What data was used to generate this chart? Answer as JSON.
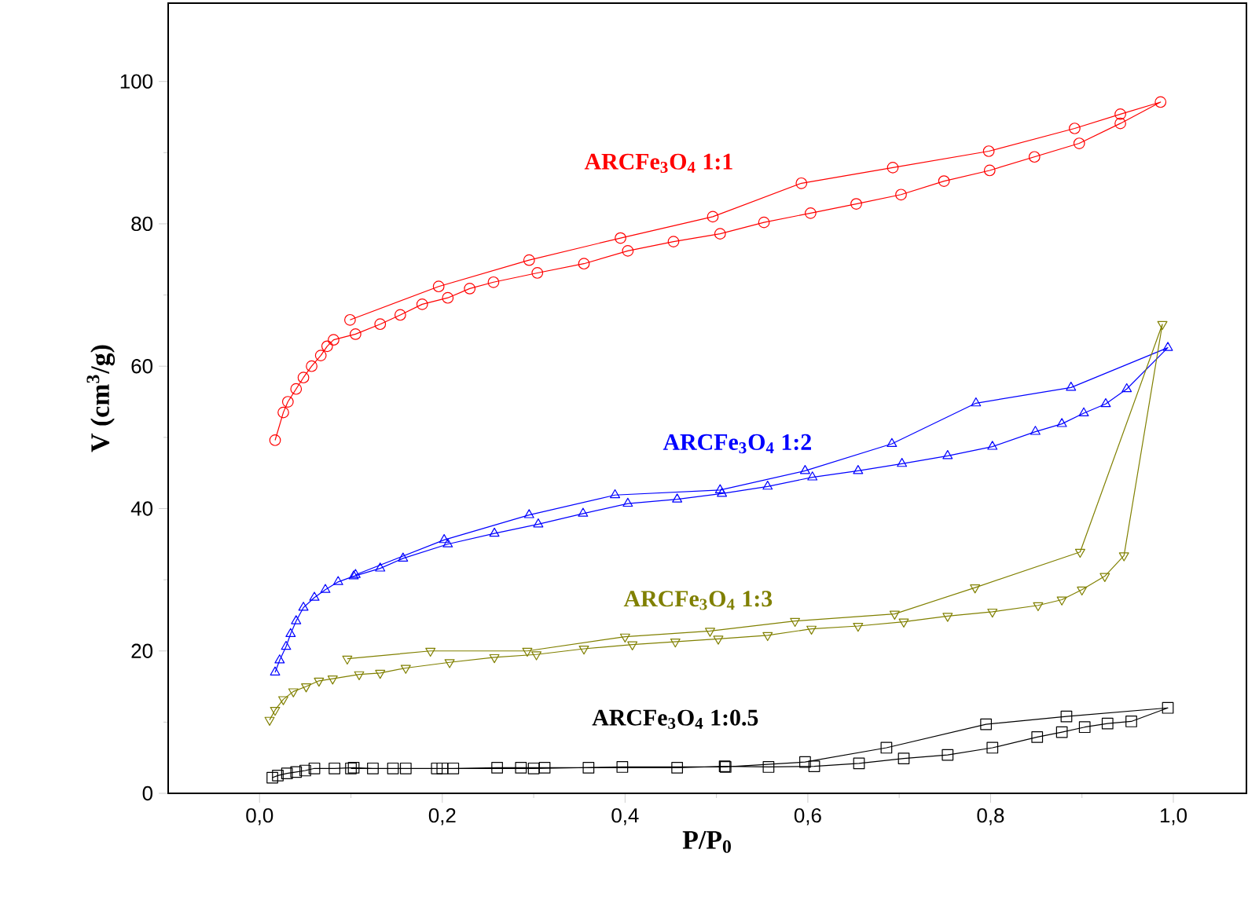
{
  "chart_data": {
    "type": "line",
    "xlabel": "P/P$_{0}$",
    "ylabel": "V (cm$^{3}$/g)",
    "xlim": [
      -0.1,
      1.08
    ],
    "ylim": [
      0,
      111
    ],
    "xticks": [
      {
        "value": 0,
        "label": "0,0"
      },
      {
        "value": 0.2,
        "label": "0,2"
      },
      {
        "value": 0.4,
        "label": "0,4"
      },
      {
        "value": 0.6,
        "label": "0,6"
      },
      {
        "value": 0.8,
        "label": "0,8"
      },
      {
        "value": 1,
        "label": "1,0"
      }
    ],
    "yticks": [
      0,
      20,
      40,
      60,
      80,
      100
    ],
    "series": [
      {
        "name": "ARCFe$_{3}$O$_{4}$ 1:1",
        "color": "#ff0000",
        "marker": "circle",
        "x": [
          0.017,
          0.026,
          0.031,
          0.04,
          0.048,
          0.057,
          0.067,
          0.074,
          0.081,
          0.105,
          0.132,
          0.154,
          0.178,
          0.206,
          0.23,
          0.256,
          0.304,
          0.355,
          0.403,
          0.453,
          0.504,
          0.552,
          0.603,
          0.653,
          0.702,
          0.749,
          0.799,
          0.848,
          0.897,
          0.942,
          0.986,
          0.942,
          0.892,
          0.798,
          0.693,
          0.593,
          0.496,
          0.395,
          0.295,
          0.196,
          0.099
        ],
        "values": [
          49.6,
          53.5,
          55,
          56.8,
          58.4,
          60,
          61.5,
          62.8,
          63.7,
          64.5,
          65.9,
          67.2,
          68.7,
          69.6,
          70.9,
          71.8,
          73.1,
          74.4,
          76.2,
          77.5,
          78.6,
          80.2,
          81.5,
          82.8,
          84.1,
          86.0,
          87.5,
          89.4,
          91.3,
          94.1,
          97.1,
          95.4,
          93.4,
          90.2,
          87.9,
          85.7,
          81.0,
          78.0,
          74.9,
          71.2,
          66.5
        ]
      },
      {
        "name": "ARCFe$_{3}$O$_{4}$ 1:2",
        "color": "#0000ff",
        "marker": "triangle",
        "x": [
          0.017,
          0.022,
          0.029,
          0.034,
          0.04,
          0.048,
          0.06,
          0.072,
          0.086,
          0.103,
          0.132,
          0.157,
          0.206,
          0.257,
          0.305,
          0.354,
          0.403,
          0.457,
          0.506,
          0.556,
          0.605,
          0.655,
          0.703,
          0.753,
          0.802,
          0.849,
          0.878,
          0.902,
          0.926,
          0.949,
          0.994,
          0.888,
          0.784,
          0.692,
          0.597,
          0.504,
          0.389,
          0.295,
          0.202,
          0.105
        ],
        "values": [
          17.0,
          18.7,
          20.6,
          22.4,
          24.2,
          26.1,
          27.5,
          28.6,
          29.7,
          30.5,
          31.6,
          33.0,
          35.0,
          36.5,
          37.8,
          39.3,
          40.7,
          41.3,
          42.1,
          43.1,
          44.4,
          45.3,
          46.3,
          47.4,
          48.7,
          50.8,
          51.9,
          53.4,
          54.7,
          56.8,
          62.6,
          57.0,
          54.8,
          49.1,
          45.3,
          42.6,
          41.9,
          39.1,
          35.6,
          30.7
        ]
      },
      {
        "name": "ARCFe$_{3}$O$_{4}$ 1:3",
        "color": "#808000",
        "marker": "triangle_down",
        "x": [
          0.011,
          0.017,
          0.026,
          0.037,
          0.051,
          0.065,
          0.08,
          0.109,
          0.132,
          0.16,
          0.208,
          0.257,
          0.303,
          0.355,
          0.408,
          0.455,
          0.502,
          0.556,
          0.604,
          0.655,
          0.705,
          0.753,
          0.802,
          0.852,
          0.878,
          0.9,
          0.925,
          0.946,
          0.988,
          0.898,
          0.783,
          0.695,
          0.586,
          0.493,
          0.4,
          0.293,
          0.187,
          0.096
        ],
        "values": [
          10.3,
          11.7,
          13.2,
          14.3,
          15.0,
          15.8,
          16.1,
          16.7,
          16.9,
          17.6,
          18.4,
          19.1,
          19.5,
          20.3,
          20.9,
          21.3,
          21.7,
          22.2,
          23.1,
          23.5,
          24.1,
          24.9,
          25.5,
          26.4,
          27.2,
          28.6,
          30.5,
          33.4,
          65.9,
          33.9,
          28.9,
          25.2,
          24.2,
          22.8,
          22.0,
          20.0,
          20.0,
          18.9
        ]
      },
      {
        "name": "ARCFe$_{3}$O$_{4}$ 1:0.5",
        "color": "#000000",
        "marker": "square",
        "x": [
          0.014,
          0.02,
          0.03,
          0.04,
          0.05,
          0.06,
          0.082,
          0.103,
          0.124,
          0.146,
          0.16,
          0.194,
          0.212,
          0.26,
          0.286,
          0.312,
          0.36,
          0.457,
          0.509,
          0.557,
          0.607,
          0.656,
          0.705,
          0.753,
          0.802,
          0.851,
          0.878,
          0.903,
          0.928,
          0.954,
          0.994,
          0.883,
          0.795,
          0.686,
          0.597,
          0.51,
          0.397,
          0.3,
          0.2,
          0.1
        ],
        "values": [
          2.2,
          2.5,
          2.8,
          3.0,
          3.2,
          3.5,
          3.5,
          3.6,
          3.5,
          3.5,
          3.5,
          3.5,
          3.5,
          3.6,
          3.6,
          3.6,
          3.6,
          3.6,
          3.8,
          3.7,
          3.8,
          4.2,
          4.9,
          5.4,
          6.4,
          7.9,
          8.6,
          9.3,
          9.8,
          10.1,
          12.0,
          10.8,
          9.7,
          6.4,
          4.4,
          3.7,
          3.7,
          3.5,
          3.5,
          3.5
        ]
      }
    ]
  }
}
